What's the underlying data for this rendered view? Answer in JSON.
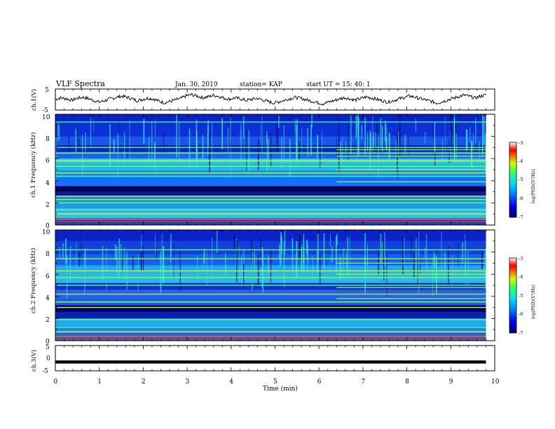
{
  "header": {
    "title": "VLF Spectra",
    "date": "Jan. 30, 2019",
    "station": "station= KAP",
    "start_time": "start  UT =   15: 40: 1"
  },
  "chart_data": [
    {
      "type": "line",
      "name": "ch1-waveform",
      "ylabel": "ch.1(V)",
      "ylim": [
        -5,
        5
      ],
      "yticks": [
        "5",
        "-5"
      ],
      "xlim": [
        0,
        10
      ],
      "x_extent": [
        0,
        9.8
      ],
      "color": "#000000",
      "values": [
        0.2,
        0.8,
        0.4,
        -0.3,
        0.6,
        1.1,
        0.5,
        -0.4,
        -1.2,
        -0.6,
        0.3,
        0.9,
        1.6,
        1.2,
        0.4,
        -0.5,
        0.1,
        0.7,
        0.3,
        -0.8,
        -1.5,
        -0.9,
        -0.2,
        0.5,
        1.8,
        2.3,
        1.7,
        0.9,
        1.3,
        2.0,
        1.5,
        0.6,
        0.2,
        0.8,
        0.3,
        -0.4,
        0.1,
        0.6,
        -0.2,
        -0.9,
        -1.6,
        -1.1,
        -0.3,
        0.4,
        1.0,
        0.6,
        -0.1,
        -0.7,
        -1.4,
        -2.0,
        -1.3,
        -0.6,
        0.2,
        0.9,
        0.4,
        -0.3,
        0.5,
        1.2,
        0.8,
        0.1,
        -0.6,
        -1.2,
        -0.5,
        0.3,
        1.0,
        1.7,
        1.1,
        0.4,
        -0.2,
        -0.9,
        -1.7,
        -1.0,
        -0.1,
        0.6,
        1.4,
        2.1,
        1.5,
        0.7,
        1.6,
        2.2
      ]
    },
    {
      "type": "heatmap",
      "name": "ch1-spectrogram",
      "xlabel": "",
      "ylabel": "ch.1 Frequency (kHz)",
      "xlim": [
        0,
        10
      ],
      "x_extent": [
        0,
        9.8
      ],
      "ylim": [
        0,
        10
      ],
      "yticks": [
        "0",
        "2",
        "4",
        "6",
        "8",
        "10"
      ],
      "colorbar": {
        "label": "log(PSD)(V²/Hz)",
        "range": [
          -7,
          -3
        ],
        "ticks": [
          "-3",
          "-4",
          "-5",
          "-6",
          "-7"
        ]
      }
    },
    {
      "type": "heatmap",
      "name": "ch2-spectrogram",
      "xlabel": "",
      "ylabel": "ch.2 Frequency (kHz)",
      "xlim": [
        0,
        10
      ],
      "x_extent": [
        0,
        9.8
      ],
      "ylim": [
        0,
        10
      ],
      "yticks": [
        "0",
        "2",
        "4",
        "6",
        "8",
        "10"
      ],
      "colorbar": {
        "label": "log(PSD)(V²/Hz)",
        "range": [
          -7,
          -3
        ],
        "ticks": [
          "-3",
          "-4",
          "-5",
          "-6",
          "-7"
        ]
      }
    },
    {
      "type": "line",
      "name": "ch3-waveform",
      "xlabel": "Time (min)",
      "ylabel": "ch.3(V)",
      "ylim": [
        -5,
        5
      ],
      "yticks": [
        "5",
        "0",
        "-5"
      ],
      "xlim": [
        0,
        10
      ],
      "xticks": [
        "0",
        "1",
        "2",
        "3",
        "4",
        "5",
        "6",
        "7",
        "8",
        "9",
        "10"
      ],
      "x_extent": [
        0,
        9.8
      ],
      "constant_value": -1.5,
      "color": "#000000"
    }
  ],
  "colors": {
    "axes": "#000000",
    "colormap": [
      "#000033",
      "#0000cc",
      "#0044ff",
      "#00aaff",
      "#00ffcc",
      "#44ff44",
      "#ffff00",
      "#ff8800",
      "#ff0000",
      "#ffffff"
    ]
  }
}
